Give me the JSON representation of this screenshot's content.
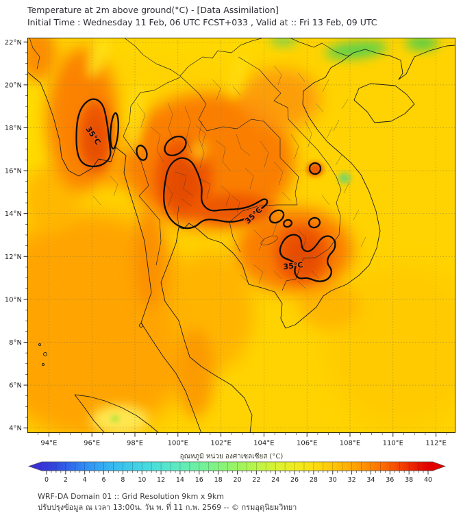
{
  "title": {
    "line1": "Temperature at 2m above ground(°C) - [Data Assimilation]",
    "line2": "Initial Time : Wednesday 11 Feb, 06 UTC FCST+033 , Valid at :: Fri 13 Feb, 09 UTC"
  },
  "map": {
    "lat_labels": [
      "22°N",
      "20°N",
      "18°N",
      "16°N",
      "14°N",
      "12°N",
      "10°N",
      "8°N",
      "6°N",
      "4°N"
    ],
    "lon_labels": [
      "94°E",
      "96°E",
      "98°E",
      "100°E",
      "102°E",
      "104°E",
      "106°E",
      "108°E",
      "110°E",
      "112°E"
    ],
    "contour_labels": [
      "35°C",
      "35°C",
      "35°C"
    ]
  },
  "colorbar": {
    "label": "อุณหภูมิ หน่วย องศาเซลเซียส (°C)",
    "ticks": [
      0,
      2,
      4,
      6,
      8,
      10,
      12,
      14,
      16,
      18,
      20,
      22,
      24,
      26,
      28,
      30,
      32,
      34,
      36,
      38,
      40
    ],
    "palette": [
      {
        "v": 0,
        "c": "#3538D6"
      },
      {
        "v": 2,
        "c": "#2F5FE8"
      },
      {
        "v": 4,
        "c": "#318CF4"
      },
      {
        "v": 6,
        "c": "#35ADF2"
      },
      {
        "v": 8,
        "c": "#3AC4EC"
      },
      {
        "v": 10,
        "c": "#43D6E2"
      },
      {
        "v": 12,
        "c": "#50E2D2"
      },
      {
        "v": 14,
        "c": "#5FEBBB"
      },
      {
        "v": 16,
        "c": "#6FF09E"
      },
      {
        "v": 18,
        "c": "#83F37F"
      },
      {
        "v": 20,
        "c": "#9CF461"
      },
      {
        "v": 22,
        "c": "#BAF44A"
      },
      {
        "v": 24,
        "c": "#D8F233"
      },
      {
        "v": 26,
        "c": "#EEEC1F"
      },
      {
        "v": 28,
        "c": "#FBDD12"
      },
      {
        "v": 30,
        "c": "#FFC708"
      },
      {
        "v": 32,
        "c": "#FFA803"
      },
      {
        "v": 34,
        "c": "#FF8502"
      },
      {
        "v": 36,
        "c": "#FA5C01"
      },
      {
        "v": 38,
        "c": "#EF2E00"
      },
      {
        "v": 40,
        "c": "#E10000"
      }
    ],
    "arrow_left_color": "#3A2ED6",
    "arrow_right_color": "#E10000"
  },
  "footer": {
    "line1": "WRF-DA Domain 01 :: Grid Resolution 9km x 9km",
    "line2": "ปรับปรุงข้อมูล ณ เวลา 13:00น. วัน พ. ที่ 11 ก.พ. 2569 -- © กรมอุตุนิยมวิทยา"
  },
  "colors": {
    "sea_gold": "#FFD301",
    "andaman_orange": "#FFA400",
    "land_orange": "#FA7E05",
    "hot_core": "#EE5606",
    "cool_green": "#5BD24A",
    "contour_line": "#0D0D0D"
  },
  "chart_data": {
    "type": "heatmap",
    "title": "Temperature at 2m above ground(°C) - [Data Assimilation]",
    "subtitle": "Initial Time : Wednesday 11 Feb, 06 UTC FCST+033 , Valid at :: Fri 13 Feb, 09 UTC",
    "xlabel": "longitude",
    "ylabel": "latitude",
    "xlim": [
      93.0,
      113.0
    ],
    "ylim": [
      3.8,
      22.2
    ],
    "x_ticks": [
      "94°E",
      "96°E",
      "98°E",
      "100°E",
      "102°E",
      "104°E",
      "106°E",
      "108°E",
      "110°E",
      "112°E"
    ],
    "y_ticks": [
      "22°N",
      "20°N",
      "18°N",
      "16°N",
      "14°N",
      "12°N",
      "10°N",
      "8°N",
      "6°N",
      "4°N"
    ],
    "colorbar": {
      "label": "อุณหภูมิ หน่วย องศาเซลเซียส (°C)",
      "range": [
        0,
        40
      ],
      "tick_step": 2,
      "palette": "jet-like blue→cyan→green→yellow→orange→red"
    },
    "grid": true,
    "contour_level_c": 35,
    "contour_regions": [
      {
        "area": "central Myanmar lowlands (95-97E, 16-19.5N)",
        "label": "35°C"
      },
      {
        "area": "central Thailand with eastward tongue along 14N into Cambodia (99.5-104E)",
        "label": "35°C"
      },
      {
        "area": "NE Cambodia / southern Vietnam (105-107E, 11-13.3N)",
        "label": "35°C"
      }
    ],
    "field_summary": [
      {
        "region": "South China Sea / Gulf of Tonkin",
        "approx_temp_c": 30
      },
      {
        "region": "Andaman Sea / Bay of Bengal",
        "approx_temp_c": 32
      },
      {
        "region": "Indochina interior land (Thailand, Laos, Cambodia, Myanmar)",
        "approx_temp_c": "33-36"
      },
      {
        "region": "hot cores inside 35°C contours",
        "approx_temp_c": "35-36"
      },
      {
        "region": "northern Vietnam coast & S China green patches",
        "approx_temp_c": "26-28"
      },
      {
        "region": "central Vietnam highlands green spot",
        "approx_temp_c": 27
      },
      {
        "region": "northern Sumatra highlands",
        "approx_temp_c": "28-29"
      }
    ]
  }
}
